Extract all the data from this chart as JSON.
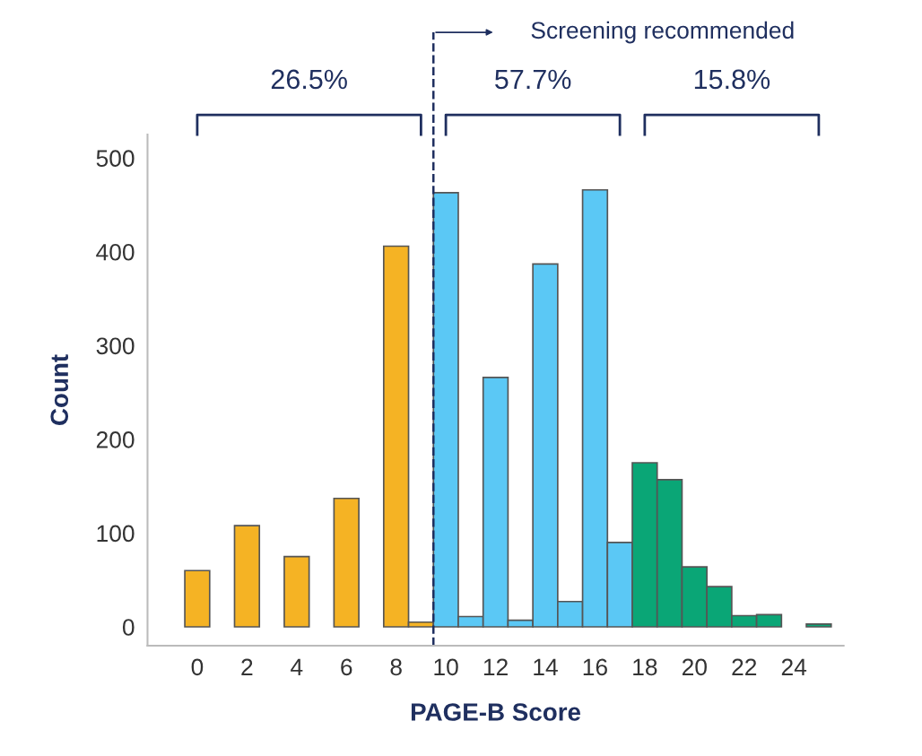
{
  "chart_data": {
    "type": "histogram",
    "xlabel": "PAGE-B Score",
    "ylabel": "Count",
    "bins": [
      -0.5,
      0.5,
      1.5,
      2.5,
      3.5,
      4.5,
      5.5,
      6.5,
      7.5,
      8.5,
      9.5,
      10.5,
      11.5,
      12.5,
      13.5,
      14.5,
      15.5,
      16.5,
      17.5,
      18.5,
      19.5,
      20.5,
      21.5,
      22.5,
      23.5,
      24.5,
      25.5
    ],
    "values": [
      60,
      0,
      108,
      0,
      75,
      0,
      137,
      0,
      406,
      5,
      463,
      11,
      266,
      7,
      387,
      27,
      466,
      90,
      175,
      157,
      64,
      43,
      12,
      13,
      0,
      3
    ],
    "colors": [
      "#f5b324",
      "#f5b324",
      "#f5b324",
      "#f5b324",
      "#f5b324",
      "#f5b324",
      "#f5b324",
      "#f5b324",
      "#f5b324",
      "#f5b324",
      "#5bc8f5",
      "#5bc8f5",
      "#5bc8f5",
      "#5bc8f5",
      "#5bc8f5",
      "#5bc8f5",
      "#5bc8f5",
      "#5bc8f5",
      "#0aa676",
      "#0aa676",
      "#0aa676",
      "#0aa676",
      "#0aa676",
      "#0aa676",
      "#0aa676",
      "#0aa676"
    ],
    "xlim": [
      -2,
      26
    ],
    "xticks": [
      0,
      2,
      4,
      6,
      8,
      10,
      12,
      14,
      16,
      18,
      20,
      22,
      24
    ],
    "ylim": [
      -20,
      525
    ],
    "yticks": [
      0,
      100,
      200,
      300,
      400,
      500
    ],
    "ref_lines": [
      {
        "axis": "x",
        "value": 9.5,
        "label": "Screening recommended",
        "color": "#1f2f5f",
        "line_style": "dashed"
      }
    ],
    "annotations": [
      "26.5%",
      "57.7%",
      "15.8%"
    ],
    "grid": false
  }
}
